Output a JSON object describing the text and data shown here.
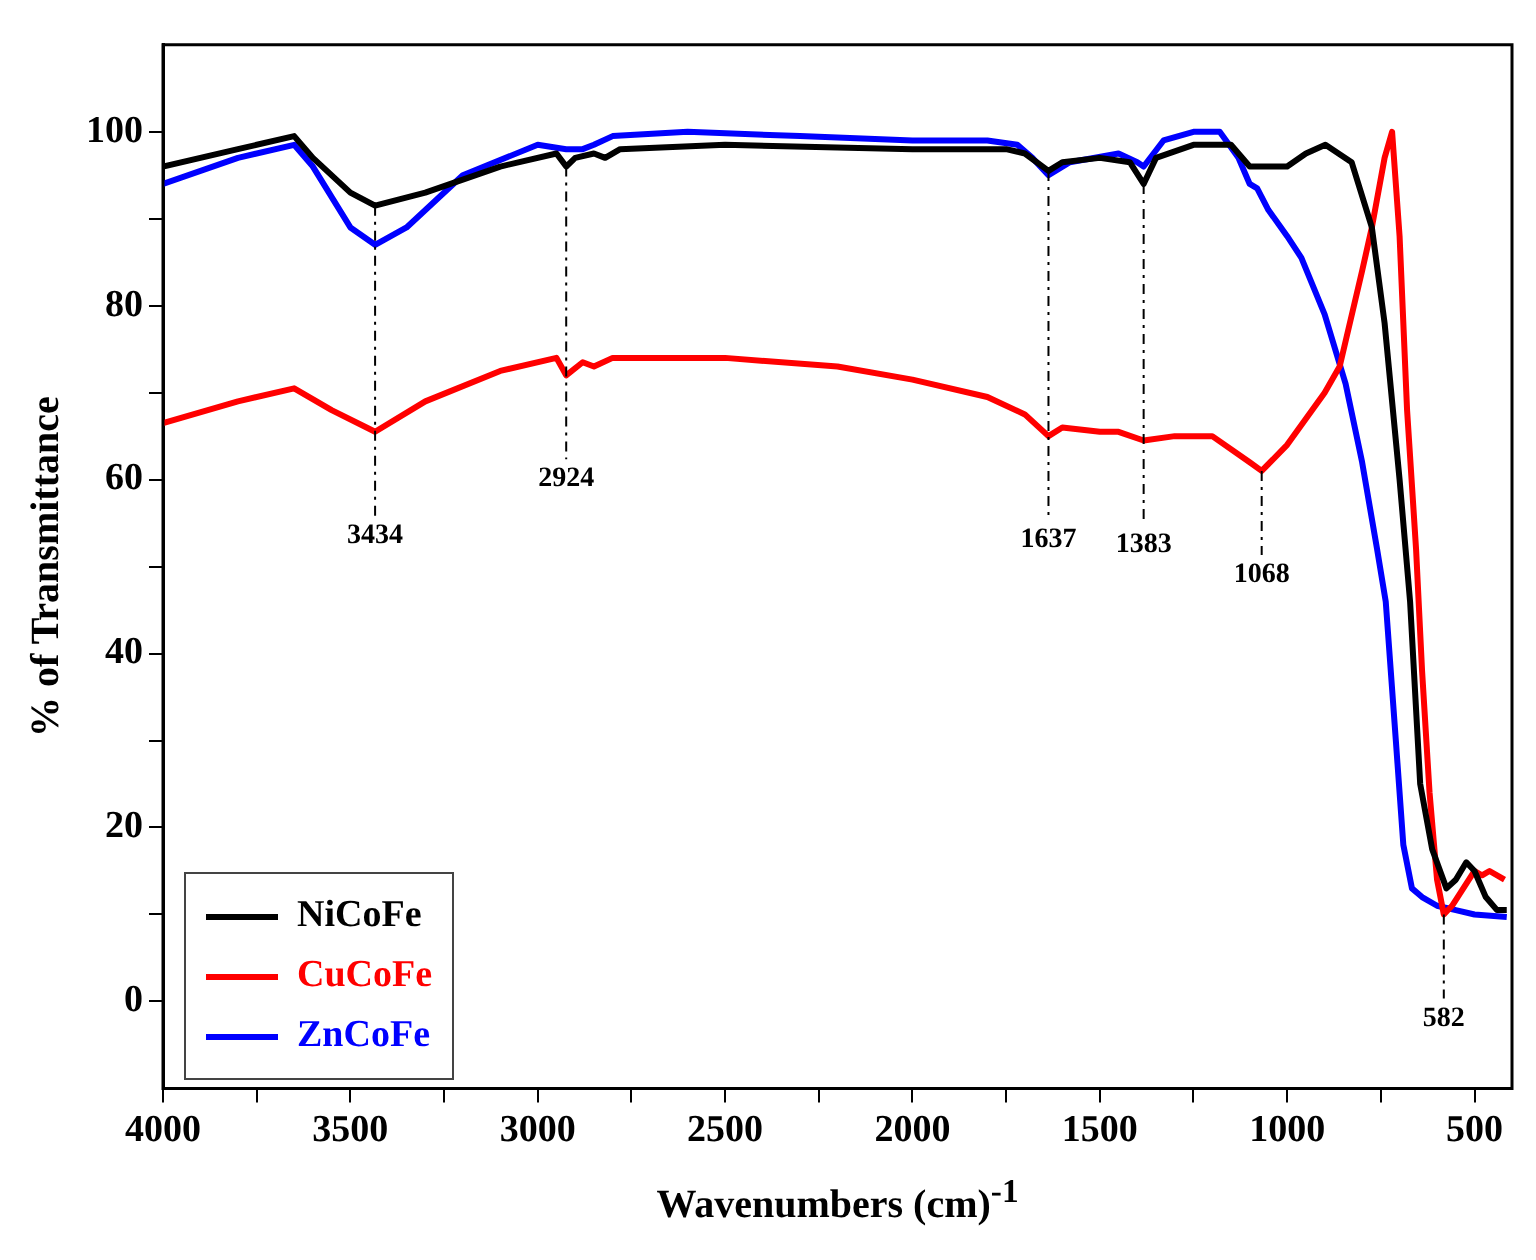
{
  "chart_data": {
    "type": "line",
    "xlabel": "Wavenumbers (cm)$^{-1}$",
    "ylabel": "% of Transmittance",
    "xlim": [
      4000,
      400
    ],
    "xticks": [
      4000,
      {
        "value": 3750,
        "label": null
      },
      3500,
      {
        "value": 3250,
        "label": null
      },
      3000,
      {
        "value": 2750,
        "label": null
      },
      2500,
      {
        "value": 2250,
        "label": null
      },
      2000,
      {
        "value": 1750,
        "label": null
      },
      1500,
      {
        "value": 1250,
        "label": null
      },
      1000,
      {
        "value": 750,
        "label": null
      },
      500
    ],
    "ylim": [
      -10,
      110
    ],
    "yticks": [
      0,
      {
        "value": 10,
        "label": null
      },
      20,
      {
        "value": 30,
        "label": null
      },
      40,
      {
        "value": 50,
        "label": null
      },
      60,
      {
        "value": 70,
        "label": null
      },
      80,
      {
        "value": 90,
        "label": null
      },
      100
    ],
    "legend": "bottom left",
    "series": [
      {
        "name": "NiCoFe",
        "color": "#000000",
        "x": [
          4000,
          3800,
          3650,
          3600,
          3500,
          3434,
          3300,
          3100,
          2950,
          2924,
          2900,
          2850,
          2820,
          2780,
          2500,
          2000,
          1750,
          1700,
          1637,
          1600,
          1500,
          1420,
          1383,
          1350,
          1250,
          1150,
          1100,
          1000,
          950,
          898,
          828,
          774,
          740,
          700,
          672,
          645,
          613,
          575,
          550,
          522,
          500,
          470,
          440,
          414
        ],
        "values": [
          96,
          98,
          99.5,
          97,
          93,
          91.5,
          93,
          96,
          97.5,
          96,
          97,
          97.5,
          97,
          98,
          98.5,
          98,
          98,
          97.5,
          95.5,
          96.5,
          97,
          96.5,
          94,
          97,
          98.5,
          98.5,
          96,
          96,
          97.5,
          98.5,
          96.5,
          89,
          78,
          60,
          46,
          25,
          17.5,
          13,
          14,
          16,
          15,
          12,
          10.5,
          10.5
        ]
      },
      {
        "name": "CuCoFe",
        "color": "#ff0000",
        "x": [
          4000,
          3800,
          3650,
          3550,
          3434,
          3300,
          3100,
          2950,
          2924,
          2880,
          2850,
          2800,
          2500,
          2200,
          2000,
          1800,
          1700,
          1637,
          1600,
          1500,
          1450,
          1383,
          1300,
          1200,
          1100,
          1068,
          1000,
          900,
          860,
          800,
          774,
          740,
          720,
          700,
          680,
          656,
          640,
          620,
          600,
          582,
          560,
          530,
          500,
          480,
          460,
          420
        ],
        "values": [
          66.5,
          69,
          70.5,
          68,
          65.5,
          69,
          72.5,
          74,
          72,
          73.5,
          73,
          74,
          74,
          73,
          71.5,
          69.5,
          67.5,
          65,
          66,
          65.5,
          65.5,
          64.5,
          65,
          65,
          62,
          61,
          64,
          70,
          73,
          84,
          89,
          97,
          100,
          88,
          68,
          52,
          38,
          24,
          14,
          10,
          11,
          13,
          15,
          14.5,
          15,
          14
        ]
      },
      {
        "name": "ZnCoFe",
        "color": "#0000ff",
        "x": [
          4000,
          3800,
          3650,
          3600,
          3500,
          3434,
          3350,
          3200,
          3000,
          2924,
          2880,
          2850,
          2800,
          2600,
          2300,
          2000,
          1800,
          1720,
          1680,
          1637,
          1580,
          1450,
          1400,
          1383,
          1330,
          1250,
          1180,
          1130,
          1100,
          1080,
          1050,
          1000,
          962,
          900,
          844,
          800,
          760,
          737,
          710,
          690,
          667,
          640,
          600,
          550,
          500,
          414
        ],
        "values": [
          94,
          97,
          98.5,
          96,
          89,
          87,
          89,
          95,
          98.5,
          98,
          98,
          98.5,
          99.5,
          100,
          99.5,
          99,
          99,
          98.5,
          97,
          95,
          96.5,
          97.5,
          96.5,
          96,
          99,
          100,
          100,
          97,
          94,
          93.5,
          91,
          88,
          85.5,
          79,
          71,
          62,
          52,
          46,
          30,
          18,
          13,
          12,
          11,
          10.5,
          10,
          9.7
        ]
      }
    ],
    "annotations": [
      {
        "text": "3434",
        "x": 3434,
        "y": 91.5
      },
      {
        "text": "2924",
        "x": 2924,
        "y": 96
      },
      {
        "text": "1637",
        "x": 1637,
        "y": 95.5
      },
      {
        "text": "1383",
        "x": 1383,
        "y": 94
      },
      {
        "text": "1068",
        "x": 1068,
        "y": 61
      },
      {
        "text": "582",
        "x": 582,
        "y": 10
      }
    ]
  }
}
